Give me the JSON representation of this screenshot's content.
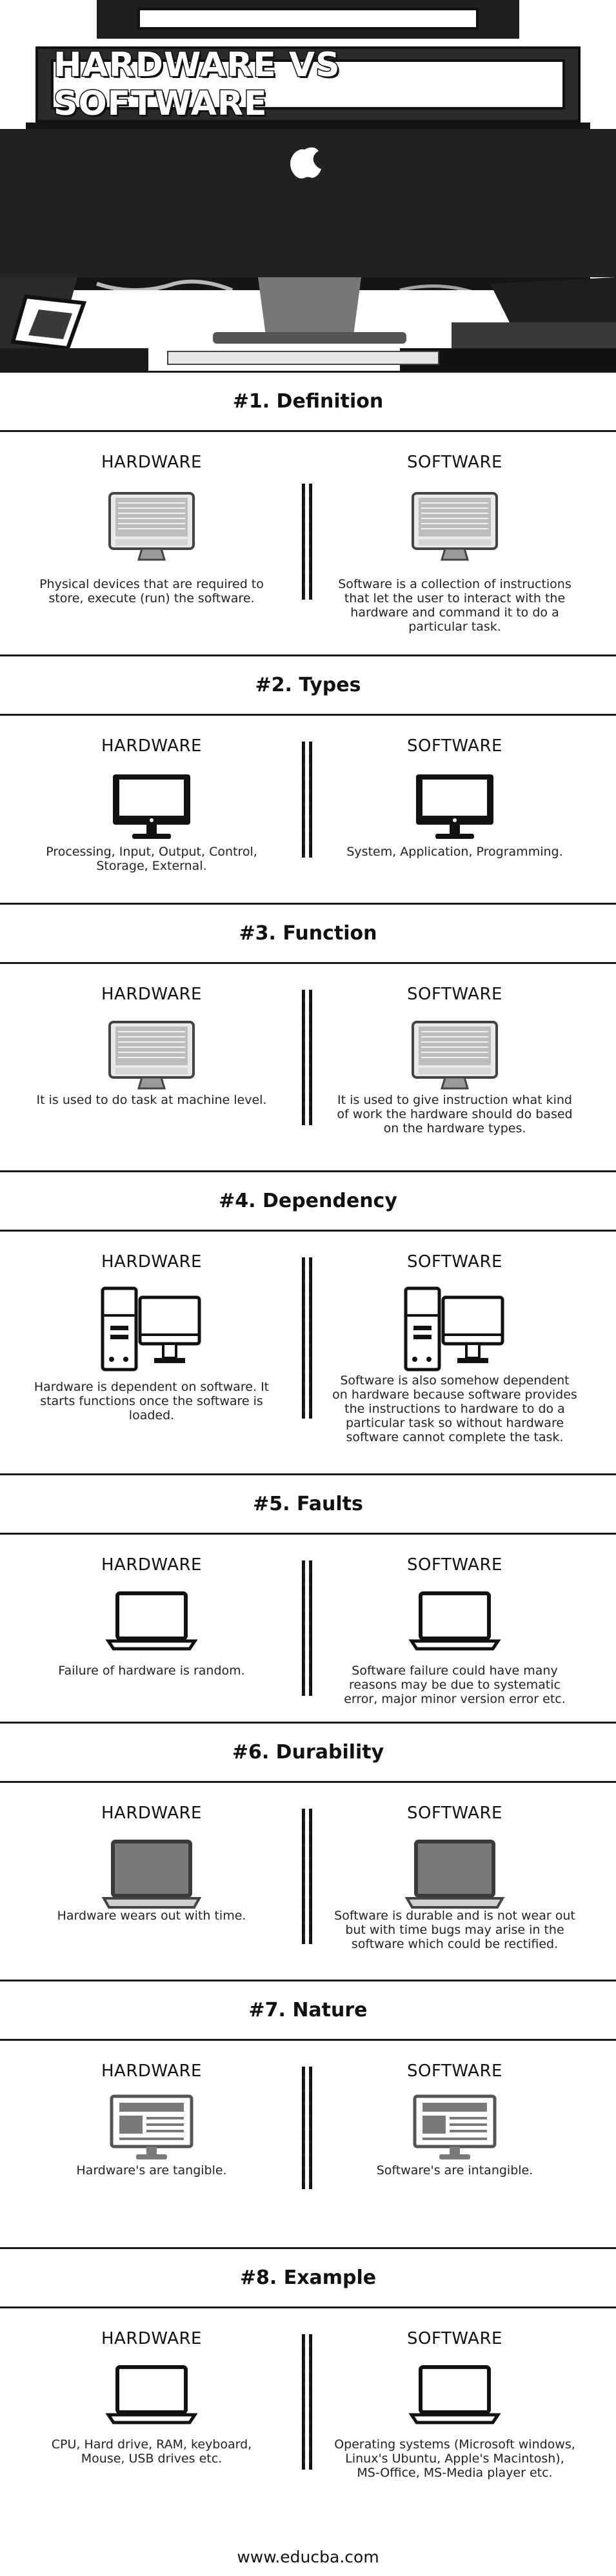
{
  "title": "HARDWARE VS SOFTWARE",
  "column_labels": {
    "left": "HARDWARE",
    "right": "SOFTWARE"
  },
  "sections": [
    {
      "heading": "#1. Definition",
      "hardware": "Physical devices that are required to store, execute (run) the software.",
      "software": "Software is a collection of instructions that let the user to interact with the hardware and command it to do a particular task.",
      "icon": "imac-monitor-icon"
    },
    {
      "heading": "#2. Types",
      "hardware": "Processing, Input, Output, Control, Storage, External.",
      "software": "System, Application, Programming.",
      "icon": "desktop-monitor-icon"
    },
    {
      "heading": "#3. Function",
      "hardware": "It is used to do task at machine level.",
      "software": "It is used to give instruction what kind of work the hardware should do based on the hardware types.",
      "icon": "imac-monitor-icon"
    },
    {
      "heading": "#4. Dependency",
      "hardware": "Hardware is dependent on software. It starts functions once the software is loaded.",
      "software": "Software is also somehow dependent on hardware because software provides the instructions to hardware to do a particular task so without hardware software cannot complete the task.",
      "icon": "desktop-tower-icon"
    },
    {
      "heading": "#5. Faults",
      "hardware": "Failure of hardware is random.",
      "software": "Software failure could have many reasons may be due to systematic error, major minor version error etc.",
      "icon": "laptop-icon"
    },
    {
      "heading": "#6. Durability",
      "hardware": "Hardware wears out with time.",
      "software": "Software is durable and is not wear out but with time bugs may arise in the software which could be rectified.",
      "icon": "laptop-gray-screen-icon"
    },
    {
      "heading": "#7. Nature",
      "hardware": "Hardware's are tangible.",
      "software": "Software's are intangible.",
      "icon": "monitor-webpage-icon"
    },
    {
      "heading": "#8. Example",
      "hardware": "CPU, Hard drive, RAM, keyboard, Mouse, USB drives etc.",
      "software": "Operating systems (Microsoft windows, Linux's Ubuntu, Apple's Macintosh), MS-Office, MS-Media player etc.",
      "icon": "laptop-icon"
    }
  ],
  "footer": "www.educba.com",
  "colors": {
    "ink": "#111111",
    "background": "#ffffff",
    "gray": "#7a7a7a"
  }
}
